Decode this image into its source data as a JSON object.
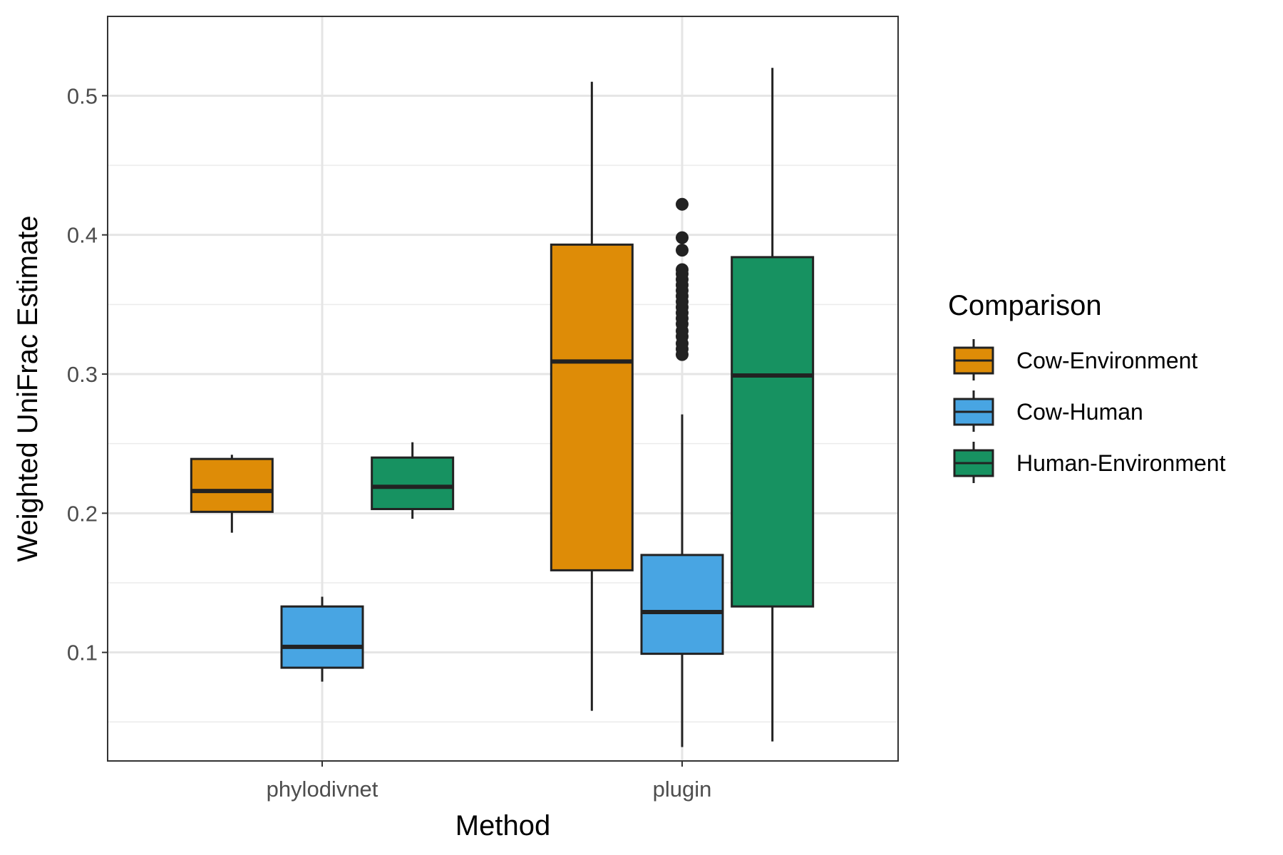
{
  "chart_data": {
    "type": "boxplot",
    "title": "",
    "xlabel": "Method",
    "ylabel": "Weighted UniFrac Estimate",
    "categories": [
      "phylodivnet",
      "plugin"
    ],
    "ylim": [
      0.022,
      0.557
    ],
    "yticks": [
      0.1,
      0.2,
      0.3,
      0.4,
      0.5
    ],
    "ytick_labels": [
      "0.1",
      "0.2",
      "0.3",
      "0.4",
      "0.5"
    ],
    "grid": true,
    "legend": {
      "title": "Comparison",
      "position": "right"
    },
    "series": [
      {
        "name": "Cow-Environment",
        "color": "#DE8C07",
        "boxes": [
          {
            "category": "phylodivnet",
            "lower_whisker": 0.186,
            "q1": 0.201,
            "median": 0.216,
            "q3": 0.239,
            "upper_whisker": 0.242,
            "outliers": []
          },
          {
            "category": "plugin",
            "lower_whisker": 0.058,
            "q1": 0.159,
            "median": 0.309,
            "q3": 0.393,
            "upper_whisker": 0.51,
            "outliers": []
          }
        ]
      },
      {
        "name": "Cow-Human",
        "color": "#48A5E3",
        "boxes": [
          {
            "category": "phylodivnet",
            "lower_whisker": 0.079,
            "q1": 0.089,
            "median": 0.104,
            "q3": 0.133,
            "upper_whisker": 0.14,
            "outliers": []
          },
          {
            "category": "plugin",
            "lower_whisker": 0.032,
            "q1": 0.099,
            "median": 0.129,
            "q3": 0.17,
            "upper_whisker": 0.271,
            "outliers": [
              0.314,
              0.318,
              0.322,
              0.327,
              0.331,
              0.336,
              0.34,
              0.344,
              0.348,
              0.352,
              0.356,
              0.36,
              0.364,
              0.368,
              0.372,
              0.375,
              0.389,
              0.398,
              0.422
            ]
          }
        ]
      },
      {
        "name": "Human-Environment",
        "color": "#179261",
        "boxes": [
          {
            "category": "phylodivnet",
            "lower_whisker": 0.196,
            "q1": 0.203,
            "median": 0.219,
            "q3": 0.24,
            "upper_whisker": 0.251,
            "outliers": []
          },
          {
            "category": "plugin",
            "lower_whisker": 0.036,
            "q1": 0.133,
            "median": 0.299,
            "q3": 0.384,
            "upper_whisker": 0.52,
            "outliers": []
          }
        ]
      }
    ]
  }
}
